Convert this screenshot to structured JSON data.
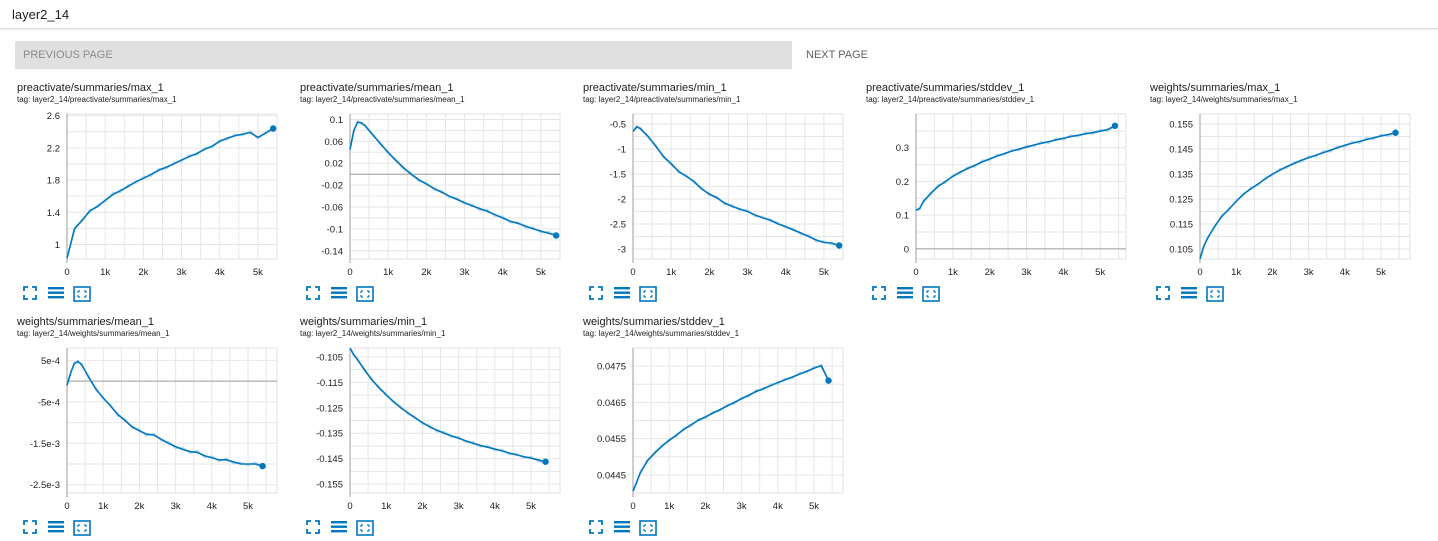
{
  "header": {
    "title": "layer2_14"
  },
  "pager": {
    "previous_label": "PREVIOUS PAGE",
    "next_label": "NEXT PAGE"
  },
  "colors": {
    "accent": "#0277bd",
    "smooth_raw": "#b3d7ef",
    "grid": "#e6e6e6",
    "axis": "#9e9e9e"
  },
  "icons": [
    "fullscreen-icon",
    "list-icon",
    "fit-domain-icon"
  ],
  "chart_data": [
    {
      "type": "line",
      "title": "preactivate/summaries/max_1",
      "tag": "tag: layer2_14/preactivate/summaries/max_1",
      "xlim": [
        0,
        5500
      ],
      "ylim": [
        0.82,
        2.62
      ],
      "xticks": [
        0,
        1000,
        2000,
        3000,
        4000,
        5000
      ],
      "xtick_labels": [
        "0",
        "1k",
        "2k",
        "3k",
        "4k",
        "5k"
      ],
      "yticks": [
        1.0,
        1.4,
        1.8,
        2.2,
        2.6
      ],
      "ytick_labels": [
        "1",
        "1.4",
        "1.8",
        "2.2",
        "2.6"
      ],
      "series": [
        {
          "x": [
            0,
            200,
            400,
            600,
            800,
            1000,
            1200,
            1400,
            1600,
            1800,
            2000,
            2200,
            2400,
            2600,
            2800,
            3000,
            3200,
            3400,
            3600,
            3800,
            4000,
            4200,
            4400,
            4600,
            4800,
            5000,
            5200,
            5400
          ],
          "y": [
            0.83,
            1.2,
            1.3,
            1.42,
            1.47,
            1.55,
            1.62,
            1.67,
            1.72,
            1.78,
            1.82,
            1.87,
            1.92,
            1.96,
            2.0,
            2.05,
            2.09,
            2.13,
            2.18,
            2.22,
            2.28,
            2.32,
            2.35,
            2.37,
            2.39,
            2.33,
            2.38,
            2.44
          ]
        }
      ]
    },
    {
      "type": "line",
      "title": "preactivate/summaries/mean_1",
      "tag": "tag: layer2_14/preactivate/summaries/mean_1",
      "xlim": [
        0,
        5500
      ],
      "ylim": [
        -0.155,
        0.11
      ],
      "xticks": [
        0,
        1000,
        2000,
        3000,
        4000,
        5000
      ],
      "xtick_labels": [
        "0",
        "1k",
        "2k",
        "3k",
        "4k",
        "5k"
      ],
      "yticks": [
        0.1,
        0.06,
        0.02,
        -0.02,
        -0.06,
        -0.1,
        -0.14
      ],
      "ytick_labels": [
        "0.1",
        "0.06",
        "0.02",
        "-0.02",
        "-0.06",
        "-0.1",
        "-0.14"
      ],
      "hline": 0,
      "series": [
        {
          "x": [
            0,
            100,
            200,
            300,
            400,
            600,
            800,
            1000,
            1200,
            1400,
            1600,
            1800,
            2000,
            2200,
            2400,
            2600,
            2800,
            3000,
            3200,
            3400,
            3600,
            3800,
            4000,
            4200,
            4400,
            4600,
            4800,
            5000,
            5200,
            5400
          ],
          "y": [
            0.045,
            0.08,
            0.095,
            0.094,
            0.088,
            0.072,
            0.055,
            0.04,
            0.025,
            0.012,
            0.0,
            -0.01,
            -0.018,
            -0.026,
            -0.033,
            -0.04,
            -0.046,
            -0.052,
            -0.058,
            -0.063,
            -0.068,
            -0.074,
            -0.08,
            -0.086,
            -0.09,
            -0.095,
            -0.1,
            -0.104,
            -0.108,
            -0.112
          ]
        }
      ]
    },
    {
      "type": "line",
      "title": "preactivate/summaries/min_1",
      "tag": "tag: layer2_14/preactivate/summaries/min_1",
      "xlim": [
        0,
        5500
      ],
      "ylim": [
        -3.2,
        -0.3
      ],
      "xticks": [
        0,
        1000,
        2000,
        3000,
        4000,
        5000
      ],
      "xtick_labels": [
        "0",
        "1k",
        "2k",
        "3k",
        "4k",
        "5k"
      ],
      "yticks": [
        -0.5,
        -1.0,
        -1.5,
        -2.0,
        -2.5,
        -3.0
      ],
      "ytick_labels": [
        "-0.5",
        "-1",
        "-1.5",
        "-2",
        "-2.5",
        "-3"
      ],
      "series": [
        {
          "x": [
            0,
            100,
            200,
            400,
            600,
            800,
            1000,
            1200,
            1400,
            1600,
            1800,
            2000,
            2200,
            2400,
            2600,
            2800,
            3000,
            3200,
            3400,
            3600,
            3800,
            4000,
            4200,
            4400,
            4600,
            4800,
            5000,
            5200,
            5400
          ],
          "y": [
            -0.65,
            -0.55,
            -0.6,
            -0.75,
            -0.95,
            -1.15,
            -1.3,
            -1.45,
            -1.55,
            -1.65,
            -1.8,
            -1.9,
            -1.98,
            -2.08,
            -2.15,
            -2.2,
            -2.25,
            -2.32,
            -2.38,
            -2.42,
            -2.5,
            -2.55,
            -2.62,
            -2.68,
            -2.75,
            -2.82,
            -2.87,
            -2.88,
            -2.93
          ]
        }
      ]
    },
    {
      "type": "line",
      "title": "preactivate/summaries/stddev_1",
      "tag": "tag: layer2_14/preactivate/summaries/stddev_1",
      "xlim": [
        0,
        5700
      ],
      "ylim": [
        -0.03,
        0.4
      ],
      "xticks": [
        0,
        1000,
        2000,
        3000,
        4000,
        5000
      ],
      "xtick_labels": [
        "0",
        "1k",
        "2k",
        "3k",
        "4k",
        "5k"
      ],
      "yticks": [
        0.3,
        0.2,
        0.1,
        0.0
      ],
      "ytick_labels": [
        "0.3",
        "0.2",
        "0.1",
        "0"
      ],
      "hline": 0,
      "series": [
        {
          "x": [
            0,
            100,
            200,
            400,
            600,
            800,
            1000,
            1200,
            1400,
            1600,
            1800,
            2000,
            2200,
            2400,
            2600,
            2800,
            3000,
            3200,
            3400,
            3600,
            3800,
            4000,
            4200,
            4400,
            4600,
            4800,
            5000,
            5200,
            5400
          ],
          "y": [
            0.115,
            0.12,
            0.14,
            0.165,
            0.185,
            0.2,
            0.215,
            0.228,
            0.238,
            0.248,
            0.258,
            0.267,
            0.275,
            0.283,
            0.29,
            0.296,
            0.302,
            0.308,
            0.313,
            0.318,
            0.323,
            0.328,
            0.333,
            0.337,
            0.341,
            0.345,
            0.349,
            0.354,
            0.365
          ]
        }
      ]
    },
    {
      "type": "line",
      "title": "weights/summaries/max_1",
      "tag": "tag: layer2_14/weights/summaries/max_1",
      "xlim": [
        0,
        5800
      ],
      "ylim": [
        0.101,
        0.159
      ],
      "xticks": [
        0,
        1000,
        2000,
        3000,
        4000,
        5000
      ],
      "xtick_labels": [
        "0",
        "1k",
        "2k",
        "3k",
        "4k",
        "5k"
      ],
      "yticks": [
        0.155,
        0.145,
        0.135,
        0.125,
        0.115,
        0.105
      ],
      "ytick_labels": [
        "0.155",
        "0.145",
        "0.135",
        "0.125",
        "0.115",
        "0.105"
      ],
      "series": [
        {
          "x": [
            0,
            100,
            200,
            400,
            600,
            800,
            1000,
            1200,
            1400,
            1600,
            1800,
            2000,
            2200,
            2400,
            2600,
            2800,
            3000,
            3200,
            3400,
            3600,
            3800,
            4000,
            4200,
            4400,
            4600,
            4800,
            5000,
            5200,
            5400
          ],
          "y": [
            0.101,
            0.106,
            0.109,
            0.114,
            0.118,
            0.121,
            0.124,
            0.127,
            0.129,
            0.131,
            0.133,
            0.135,
            0.1365,
            0.138,
            0.1392,
            0.1405,
            0.1415,
            0.1425,
            0.1435,
            0.1445,
            0.1455,
            0.1465,
            0.1473,
            0.148,
            0.1488,
            0.1495,
            0.1502,
            0.1508,
            0.1515
          ]
        }
      ]
    },
    {
      "type": "line",
      "title": "weights/summaries/mean_1",
      "tag": "tag: layer2_14/weights/summaries/mean_1",
      "xlim": [
        0,
        5800
      ],
      "ylim": [
        -0.0027,
        0.0008
      ],
      "xticks": [
        0,
        1000,
        2000,
        3000,
        4000,
        5000
      ],
      "xtick_labels": [
        "0",
        "1k",
        "2k",
        "3k",
        "4k",
        "5k"
      ],
      "yticks": [
        0.0005,
        -0.0005,
        -0.0015,
        -0.0025
      ],
      "ytick_labels": [
        "5e-4",
        "-5e-4",
        "-1.5e-3",
        "-2.5e-3"
      ],
      "hline": 0,
      "series": [
        {
          "x": [
            0,
            100,
            200,
            300,
            400,
            600,
            800,
            1000,
            1200,
            1400,
            1600,
            1800,
            2000,
            2200,
            2400,
            2600,
            2800,
            3000,
            3200,
            3400,
            3600,
            3800,
            4000,
            4200,
            4400,
            4600,
            4800,
            5000,
            5200,
            5400
          ],
          "y": [
            -0.0001,
            0.0002,
            0.00042,
            0.00048,
            0.0004,
            0.0001,
            -0.0002,
            -0.0004,
            -0.0006,
            -0.0008,
            -0.00095,
            -0.0011,
            -0.0012,
            -0.00128,
            -0.0013,
            -0.0014,
            -0.0015,
            -0.00158,
            -0.00165,
            -0.0017,
            -0.00172,
            -0.0018,
            -0.00185,
            -0.0019,
            -0.0019,
            -0.00195,
            -0.002,
            -0.002,
            -0.002,
            -0.00205
          ]
        }
      ]
    },
    {
      "type": "line",
      "title": "weights/summaries/min_1",
      "tag": "tag: layer2_14/weights/summaries/min_1",
      "xlim": [
        0,
        5800
      ],
      "ylim": [
        -0.1585,
        -0.1015
      ],
      "xticks": [
        0,
        1000,
        2000,
        3000,
        4000,
        5000
      ],
      "xtick_labels": [
        "0",
        "1k",
        "2k",
        "3k",
        "4k",
        "5k"
      ],
      "yticks": [
        -0.105,
        -0.115,
        -0.125,
        -0.135,
        -0.145,
        -0.155
      ],
      "ytick_labels": [
        "-0.105",
        "-0.115",
        "-0.125",
        "-0.135",
        "-0.145",
        "-0.155"
      ],
      "series": [
        {
          "x": [
            0,
            100,
            200,
            400,
            600,
            800,
            1000,
            1200,
            1400,
            1600,
            1800,
            2000,
            2200,
            2400,
            2600,
            2800,
            3000,
            3200,
            3400,
            3600,
            3800,
            4000,
            4200,
            4400,
            4600,
            4800,
            5000,
            5200,
            5400
          ],
          "y": [
            -0.1015,
            -0.104,
            -0.106,
            -0.11,
            -0.114,
            -0.117,
            -0.12,
            -0.1225,
            -0.125,
            -0.127,
            -0.129,
            -0.1308,
            -0.1325,
            -0.1338,
            -0.135,
            -0.136,
            -0.137,
            -0.138,
            -0.139,
            -0.1398,
            -0.1405,
            -0.1412,
            -0.142,
            -0.1428,
            -0.1435,
            -0.1442,
            -0.1448,
            -0.1455,
            -0.1462
          ]
        }
      ]
    },
    {
      "type": "line",
      "title": "weights/summaries/stddev_1",
      "tag": "tag: layer2_14/weights/summaries/stddev_1",
      "xlim": [
        0,
        5800
      ],
      "ylim": [
        0.044,
        0.048
      ],
      "xticks": [
        0,
        1000,
        2000,
        3000,
        4000,
        5000
      ],
      "xtick_labels": [
        "0",
        "1k",
        "2k",
        "3k",
        "4k",
        "5k"
      ],
      "yticks": [
        0.0475,
        0.0465,
        0.0455,
        0.0445
      ],
      "ytick_labels": [
        "0.0475",
        "0.0465",
        "0.0455",
        "0.0445"
      ],
      "series": [
        {
          "x": [
            0,
            100,
            200,
            400,
            600,
            800,
            1000,
            1200,
            1400,
            1600,
            1800,
            2000,
            2200,
            2400,
            2600,
            2800,
            3000,
            3200,
            3400,
            3600,
            3800,
            4000,
            4200,
            4400,
            4600,
            4800,
            5000,
            5200,
            5400
          ],
          "y": [
            0.04405,
            0.0443,
            0.04455,
            0.0449,
            0.0451,
            0.0453,
            0.04545,
            0.0456,
            0.04575,
            0.04588,
            0.046,
            0.0461,
            0.0462,
            0.0463,
            0.0464,
            0.0465,
            0.0466,
            0.0467,
            0.0468,
            0.04688,
            0.04696,
            0.04705,
            0.04712,
            0.0472,
            0.04728,
            0.04736,
            0.04744,
            0.04752,
            0.0471
          ]
        }
      ]
    }
  ]
}
